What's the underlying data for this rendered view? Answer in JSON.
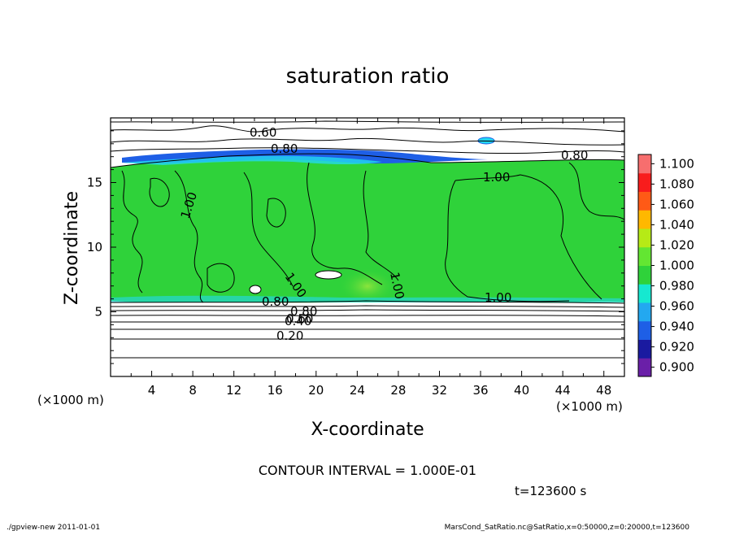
{
  "chart_data": {
    "type": "heatmap",
    "title": "saturation ratio",
    "xlabel": "X-coordinate",
    "ylabel": "Z-coordinate",
    "x_unit": "(×1000 m)",
    "y_unit": "(×1000 m)",
    "xlim": [
      0,
      50
    ],
    "ylim": [
      0,
      20
    ],
    "x_ticks": [
      "4",
      "8",
      "12",
      "16",
      "20",
      "24",
      "28",
      "32",
      "36",
      "40",
      "44",
      "48"
    ],
    "y_ticks": [
      "5",
      "10",
      "15"
    ],
    "contour_interval_text": "CONTOUR INTERVAL = 1.000E-01",
    "time_text": "t=123600 s",
    "colorbar": {
      "levels": [
        "0.900",
        "0.920",
        "0.940",
        "0.960",
        "0.980",
        "1.000",
        "1.020",
        "1.040",
        "1.060",
        "1.080",
        "1.100"
      ],
      "colors": [
        "#6a1fa8",
        "#1a1aa0",
        "#1e5fe6",
        "#23a8f0",
        "#16e8d0",
        "#2fd23a",
        "#63e632",
        "#b6ea16",
        "#ffb800",
        "#ff5a16",
        "#f81c1c",
        "#f76e6e"
      ]
    },
    "field_colors": {
      "saturated": "#2fd23a",
      "light": "#7de850",
      "sub": "#1e5fe6",
      "cyan": "#23d8f0",
      "dry": "#ffffff"
    },
    "contour_labels": [
      "0.60",
      "0.80",
      "0.80",
      "0.80",
      "1.00",
      "1.00",
      "1.00",
      "1.00",
      "1.00",
      "0.80",
      "0.60",
      "0.40",
      "0.20"
    ]
  },
  "footer": {
    "left": "./gpview-new   2011-01-01",
    "right": "MarsCond_SatRatio.nc@SatRatio,x=0:50000,z=0:20000,t=123600"
  }
}
